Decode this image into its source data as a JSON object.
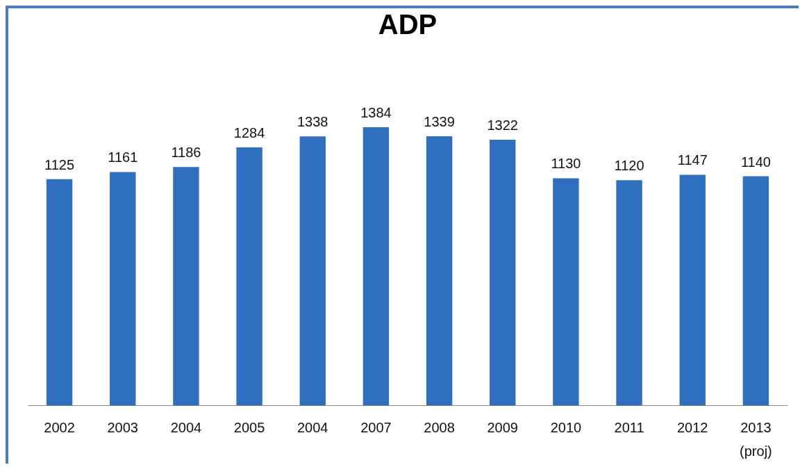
{
  "chart_data": {
    "type": "bar",
    "title": "ADP",
    "categories": [
      "2002",
      "2003",
      "2004",
      "2005",
      "2004",
      "2007",
      "2008",
      "2009",
      "2010",
      "2011",
      "2012",
      "2013 (proj)"
    ],
    "values": [
      1125,
      1161,
      1186,
      1284,
      1338,
      1384,
      1339,
      1322,
      1130,
      1120,
      1147,
      1140
    ],
    "color": "#2f6fbf",
    "data_labels": true,
    "tick_labels": "x"
  }
}
